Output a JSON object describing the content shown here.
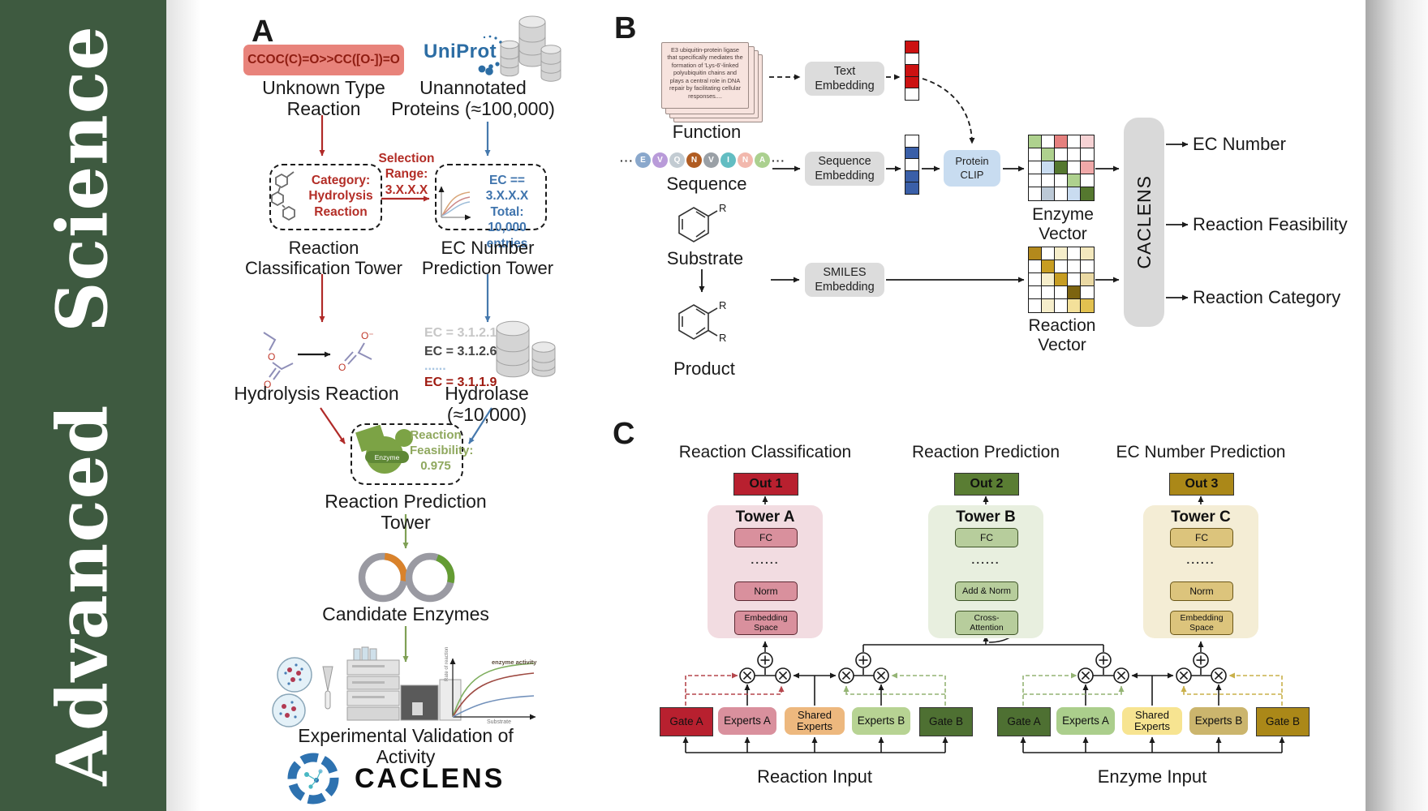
{
  "journal": {
    "name": "Advanced Science"
  },
  "panelA": {
    "label": "A",
    "smiles": "CCOC(C)=O>>CC([O-])=O",
    "unknown": "Unknown Type\nReaction",
    "uniprot": "UniProt",
    "unannotated": "Unannotated\nProteins (≈100,000)",
    "category": "Category:\nHydrolysis\nReaction",
    "selection": "Selection\nRange:\n3.X.X.X",
    "ec_filter": "EC == 3.X.X.X\nTotal: 10,000\nentries",
    "tower_classification": "Reaction\nClassification Tower",
    "tower_ec": "EC Number\nPrediction Tower",
    "hydrolysis": "Hydrolysis Reaction",
    "ec_list": [
      "EC = 3.1.2.1",
      "EC = 3.1.2.6",
      "......",
      "EC = 3.1.1.9"
    ],
    "ec_list_colors": [
      "#9e1a10",
      "#c6c6c6",
      "#444444",
      "#a9c6e2"
    ],
    "hydrolase": "Hydrolase (≈10,000)",
    "enzyme_badge": "Enzyme",
    "feasibility": "Reaction\nFeasibility:\n0.975",
    "tower_prediction": "Reaction Prediction Tower",
    "candidates": "Candidate Enzymes",
    "validation": "Experimental Validation of Activity",
    "brand": "CACLENS",
    "kinetics": {
      "ylabel": "Rate of reaction",
      "xlabel": "Substrate",
      "annotation": "enzyme activity"
    }
  },
  "panelB": {
    "label": "B",
    "function_text": "E3 ubiquitin-protein ligase that specifically mediates the formation of 'Lys-6'-linked polyubiquitin chains and plays a central role in DNA repair by facilitating cellular responses....",
    "function_label": "Function",
    "ellipsis": "···",
    "residues": [
      "E",
      "V",
      "Q",
      "N",
      "V",
      "I",
      "N",
      "A"
    ],
    "residue_colors": [
      "#8aa8cc",
      "#b99bd9",
      "#c2cbd2",
      "#b05c22",
      "#9aa0a6",
      "#62bdc2",
      "#f2b8ad",
      "#abd08f"
    ],
    "sequence_label": "Sequence",
    "substrate_label": "Substrate",
    "product_label": "Product",
    "r_label": "R",
    "text_embedding": "Text\nEmbedding",
    "sequence_embedding": "Sequence\nEmbedding",
    "smiles_embedding": "SMILES\nEmbedding",
    "protein_clip": "Protein\nCLIP",
    "enzyme_vector_label": "Enzyme Vector",
    "reaction_vector_label": "Reaction Vector",
    "caclens": "CACLENS",
    "outputs": [
      "EC Number",
      "Reaction Feasibility",
      "Reaction Category"
    ],
    "text_vector": [
      "#cc1212",
      "#ffffff",
      "#cc1212",
      "#cc1212",
      "#ffffff"
    ],
    "seq_vector": [
      "#ffffff",
      "#3a5fa8",
      "#ffffff",
      "#3a5fa8",
      "#3a5fa8"
    ],
    "enzyme_grid": [
      "#aed18e",
      "#ffffff",
      "#e5807e",
      "#ffffff",
      "#f6d2d4",
      "#ffffff",
      "#aed18e",
      "#ffffff",
      "#ffffff",
      "#ffffff",
      "#ffffff",
      "#c9dcf0",
      "#55782f",
      "#ffffff",
      "#f0a9a9",
      "#ffffff",
      "#ffffff",
      "#ffffff",
      "#aed18e",
      "#ffffff",
      "#ffffff",
      "#bcc9d6",
      "#ffffff",
      "#c9dcf0",
      "#55782f"
    ],
    "reaction_grid": [
      "#b3891c",
      "#ffffff",
      "#f6eecb",
      "#ffffff",
      "#f3e8bd",
      "#ffffff",
      "#c79d22",
      "#ffffff",
      "#ffffff",
      "#ffffff",
      "#ffffff",
      "#f6eecb",
      "#c79d22",
      "#ffffff",
      "#ead9a4",
      "#ffffff",
      "#ffffff",
      "#ffffff",
      "#7d6410",
      "#ffffff",
      "#ffffff",
      "#f6eecb",
      "#ffffff",
      "#f3e09a",
      "#e2c150"
    ]
  },
  "panelC": {
    "label": "C",
    "titles": [
      "Reaction Classification",
      "Reaction Prediction",
      "EC Number Prediction"
    ],
    "outs": [
      {
        "label": "Out 1",
        "color": "#b8202f"
      },
      {
        "label": "Out 2",
        "color": "#5a7d33"
      },
      {
        "label": "Out 3",
        "color": "#ab8818"
      }
    ],
    "towers": [
      {
        "name": "Tower A",
        "bg": "#f2dce1",
        "box": "#d9909d",
        "blocks": [
          "FC",
          "......",
          "Norm",
          "Embedding\nSpace"
        ]
      },
      {
        "name": "Tower B",
        "bg": "#e8efdf",
        "box": "#b7cd9c",
        "blocks": [
          "FC",
          "......",
          "Add & Norm",
          "Cross-\nAttention"
        ]
      },
      {
        "name": "Tower C",
        "bg": "#f4edd5",
        "box": "#dcc47c",
        "blocks": [
          "FC",
          "......",
          "Norm",
          "Embedding\nSpace"
        ]
      }
    ],
    "groups": [
      {
        "input": "Reaction Input",
        "boxes": [
          {
            "label": "Gate A",
            "color": "#b8202f"
          },
          {
            "label": "Experts A",
            "color": "#d9909d"
          },
          {
            "label": "Shared\nExperts",
            "color": "#edb87e"
          },
          {
            "label": "Experts B",
            "color": "#b7d393"
          },
          {
            "label": "Gate B",
            "color": "#4e7032"
          }
        ]
      },
      {
        "input": "Enzyme Input",
        "boxes": [
          {
            "label": "Gate A",
            "color": "#4e7032"
          },
          {
            "label": "Experts A",
            "color": "#abce8c"
          },
          {
            "label": "Shared\nExperts",
            "color": "#f7e491"
          },
          {
            "label": "Experts B",
            "color": "#cbb56d"
          },
          {
            "label": "Gate B",
            "color": "#ab8818"
          }
        ]
      }
    ]
  }
}
